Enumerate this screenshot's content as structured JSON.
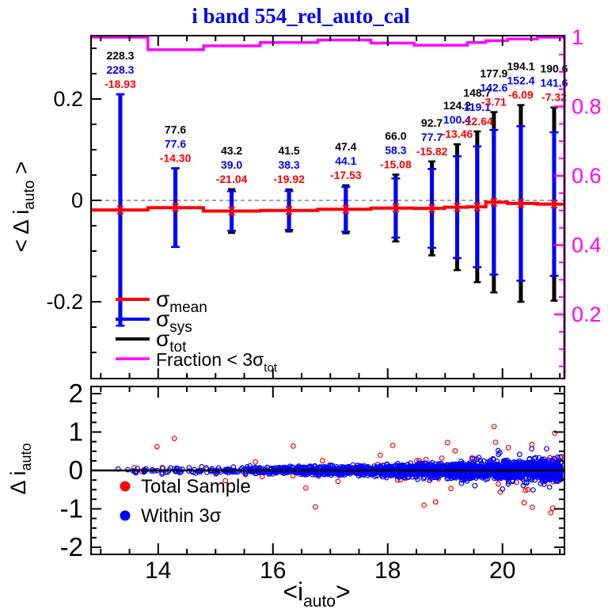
{
  "title": "i band 554_rel_auto_cal",
  "colors": {
    "title": "#0000ee",
    "sigma_mean": "#ff0000",
    "sigma_sys": "#0000ff",
    "sigma_tot": "#000000",
    "fraction": "#ff00ff",
    "total_sample": "#ff0000",
    "within_3sigma": "#0000ff",
    "zero_dash": "#888888"
  },
  "chart_data": [
    {
      "type": "line",
      "panel": "top",
      "title": "i band 554_rel_auto_cal",
      "ylabel": {
        "pre": "< Δ i",
        "sub": "auto",
        "post": " >"
      },
      "xlim": [
        12.83,
        21.08
      ],
      "ylim": [
        -0.352,
        0.325
      ],
      "yticks": [
        {
          "v": 0.2,
          "label": "0.2"
        },
        {
          "v": 0,
          "label": "0"
        },
        {
          "v": -0.2,
          "label": "-0.2"
        }
      ],
      "ytick_minor_step": 0.05,
      "xticks_major": [
        14,
        16,
        18,
        20
      ],
      "xtick_minor_step": 0.5,
      "zero_line": {
        "value": 0,
        "style": "dashed"
      },
      "right_axis": {
        "color": "#ff00ff",
        "ticks": [
          {
            "v": 1,
            "label": "1"
          },
          {
            "v": 0.8,
            "label": "0.8"
          },
          {
            "v": 0.6,
            "label": "0.6"
          },
          {
            "v": 0.4,
            "label": "0.4"
          },
          {
            "v": 0.2,
            "label": "0.2"
          }
        ],
        "tick_minor_step": 0.05
      },
      "bin_centers": [
        13.34,
        14.3,
        15.28,
        16.28,
        17.27,
        18.14,
        18.77,
        19.21,
        19.56,
        19.85,
        20.32,
        20.9
      ],
      "bin_edges": [
        12.83,
        13.82,
        14.79,
        15.78,
        16.78,
        17.71,
        18.46,
        18.99,
        19.39,
        19.71,
        20.09,
        20.61,
        21.08
      ],
      "series": [
        {
          "name": "sigma_tot_mmag",
          "color": "#000000",
          "values": [
            228.3,
            77.6,
            43.2,
            41.5,
            47.4,
            66.0,
            92.7,
            124.2,
            148.7,
            177.9,
            194.1,
            190.6
          ]
        },
        {
          "name": "sigma_sys_mmag",
          "color": "#0000ff",
          "values": [
            228.3,
            77.6,
            39.0,
            38.3,
            44.1,
            58.3,
            77.7,
            100.4,
            119.1,
            142.6,
            152.4,
            141.6
          ]
        },
        {
          "name": "mean_mmag",
          "color": "#ff0000",
          "values": [
            -18.93,
            -14.3,
            -21.04,
            -19.92,
            -17.53,
            -15.08,
            -15.82,
            -13.46,
            -12.64,
            -3.71,
            -6.09,
            -7.32
          ]
        },
        {
          "name": "fraction_lt_3sigma_tot",
          "color": "#ff00ff",
          "values": [
            1.0,
            0.964,
            0.975,
            0.985,
            0.992,
            0.983,
            0.977,
            0.977,
            0.985,
            0.99,
            0.995,
            1.0
          ]
        }
      ],
      "value_label_format": {
        "tot_decimals": 1,
        "sys_decimals": 1,
        "mean_decimals": 2
      },
      "legend": [
        {
          "base": "σ",
          "sub": "mean",
          "color": "#ff0000"
        },
        {
          "base": "σ",
          "sub": "sys",
          "color": "#0000ff"
        },
        {
          "base": "σ",
          "sub": "tot",
          "color": "#000000"
        },
        {
          "base": "Fraction < 3σ",
          "sub": "tot",
          "color": "#ff00ff"
        }
      ]
    },
    {
      "type": "scatter",
      "panel": "bottom",
      "ylabel": {
        "pre": "Δ i",
        "sub": "auto",
        "post": ""
      },
      "xlabel": {
        "pre": "<i",
        "sub": "auto",
        "post": ">"
      },
      "xlim": [
        12.83,
        21.08
      ],
      "ylim": [
        -2.19,
        2.19
      ],
      "yticks": [
        {
          "v": 2,
          "label": "2"
        },
        {
          "v": 1,
          "label": "1"
        },
        {
          "v": 0,
          "label": "0"
        },
        {
          "v": -1,
          "label": "-1"
        },
        {
          "v": -2,
          "label": "-2"
        }
      ],
      "ytick_minor_step": 0.25,
      "xticks_major": [
        {
          "v": 14,
          "label": "14"
        },
        {
          "v": 16,
          "label": "16"
        },
        {
          "v": 18,
          "label": "18"
        },
        {
          "v": 20,
          "label": "20"
        }
      ],
      "xtick_minor_step": 0.5,
      "zero_line": {
        "value": 0,
        "style": "solid"
      },
      "legend": [
        {
          "label": "Total Sample",
          "color": "#ff0000",
          "marker": "filled-circle"
        },
        {
          "label": "Within 3σ",
          "color": "#0000ff",
          "marker": "filled-circle"
        }
      ],
      "series": [
        {
          "name": "Total Sample",
          "color": "#ff0000",
          "marker": "open-circle",
          "approx_n": 135
        },
        {
          "name": "Within 3σ",
          "color": "#0000ff",
          "marker": "open-circle",
          "approx_n": 2600
        }
      ],
      "scatter_note": "dense photometric residual cloud centered on 0; spread grows toward faint magnitudes; red total-sample points include outliers up to about ±1.7 mag; blue points confined within 3 sigma_tot of each bin",
      "gen": {
        "seed": 7,
        "x_min": 12.9,
        "x_span": 8.15,
        "x_pow_blue": 2.8,
        "x_pow_red": 2.2,
        "sigma0": 0.035,
        "sigma1": 0.085,
        "sigma_pow": 1.8,
        "red_sigma_scale": 1.7,
        "red_outlier_frac": 0.3
      }
    }
  ]
}
